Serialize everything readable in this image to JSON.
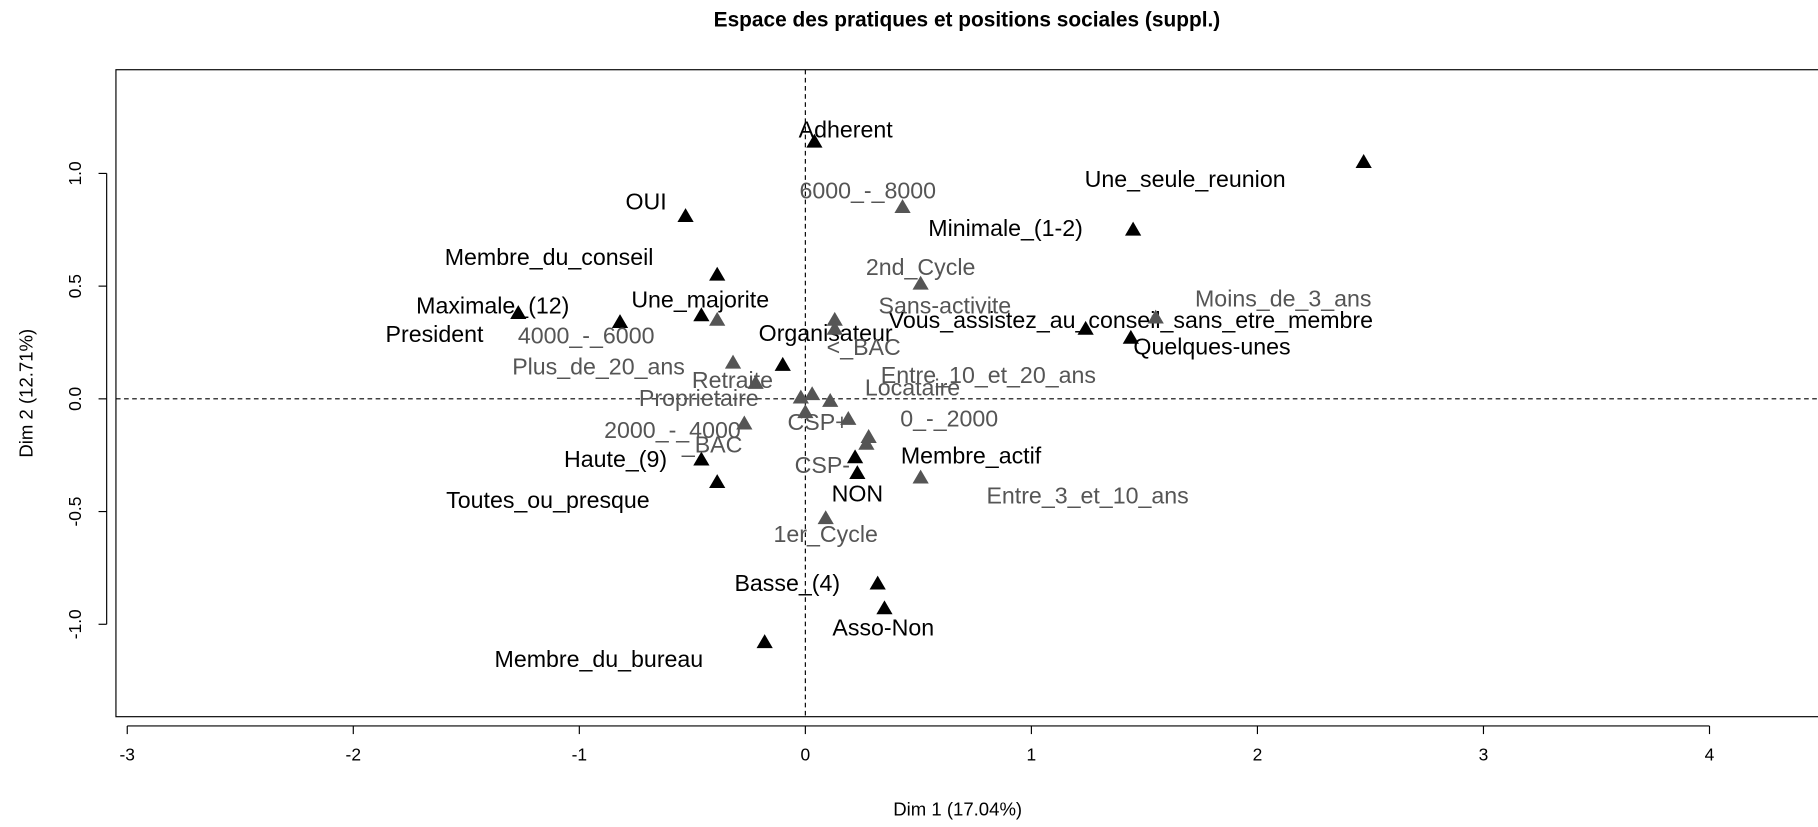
{
  "chart_data": {
    "type": "scatter",
    "title": "Espace des pratiques et positions sociales (suppl.)",
    "x_label": "Dim 1 (17.04%)",
    "y_label": "Dim 2 (12.71%)",
    "xlim": [
      -3.05,
      4.48
    ],
    "ylim": [
      -1.41,
      1.46
    ],
    "xticks": [
      -3,
      -2,
      -1,
      0,
      1,
      2,
      3,
      4
    ],
    "yticks": [
      {
        "value": -1,
        "label": "-1.0"
      },
      -0.5,
      {
        "value": 0,
        "label": "0.0"
      },
      0.5,
      {
        "value": 1,
        "label": "1.0"
      }
    ],
    "series": [
      {
        "color": "#000000",
        "labels": [
          "Adherent",
          "Une_seule_reunion",
          "OUI",
          "Minimale_(1-2)",
          "Membre_du_conseil",
          "Maximale_(12)",
          "Une_majorite",
          "President",
          "Organisateur",
          "Vous_assistez_au_conseil_sans_etre_membre",
          "Quelques-unes",
          "Haute_(9)",
          "Toutes_ou_presque",
          "Membre_actif",
          "NON",
          "Basse_(4)",
          "Asso-Non",
          "Membre_du_bureau"
        ],
        "x": [
          0.04,
          2.47,
          -0.53,
          1.45,
          -0.39,
          -1.27,
          -0.46,
          -0.82,
          -0.1,
          1.24,
          1.44,
          -0.46,
          -0.39,
          0.22,
          0.23,
          0.32,
          0.35,
          -0.18
        ],
        "values": [
          1.14,
          1.05,
          0.81,
          0.75,
          0.55,
          0.38,
          0.37,
          0.34,
          0.15,
          0.31,
          0.27,
          -0.27,
          -0.37,
          -0.26,
          -0.33,
          -0.82,
          -0.93,
          -1.08
        ]
      },
      {
        "color": "#555555",
        "labels": [
          "6000_-_8000",
          "2nd_Cycle",
          "Sans-activite",
          "Moins_de_3_ans",
          "4000_-_6000",
          "<_BAC",
          "Plus_de_20_ans",
          "Retraite",
          "Entre_10_et_20_ans",
          "Proprietaire",
          "Locataire",
          "CSP+",
          "0_-_2000",
          "2000_-_4000",
          "_BAC",
          "CSP-",
          "Entre_3_et_10_ans",
          "1er_Cycle"
        ],
        "x": [
          0.43,
          0.51,
          0.13,
          1.55,
          -0.39,
          0.13,
          -0.32,
          -0.22,
          0.03,
          -0.02,
          0.11,
          0,
          0.19,
          -0.27,
          0.28,
          0.27,
          0.51,
          0.09
        ],
        "values": [
          0.85,
          0.51,
          0.35,
          0.36,
          0.35,
          0.31,
          0.16,
          0.07,
          0.02,
          0.005,
          -0.01,
          -0.06,
          -0.09,
          -0.11,
          -0.17,
          -0.2,
          -0.35,
          -0.53
        ]
      }
    ]
  }
}
